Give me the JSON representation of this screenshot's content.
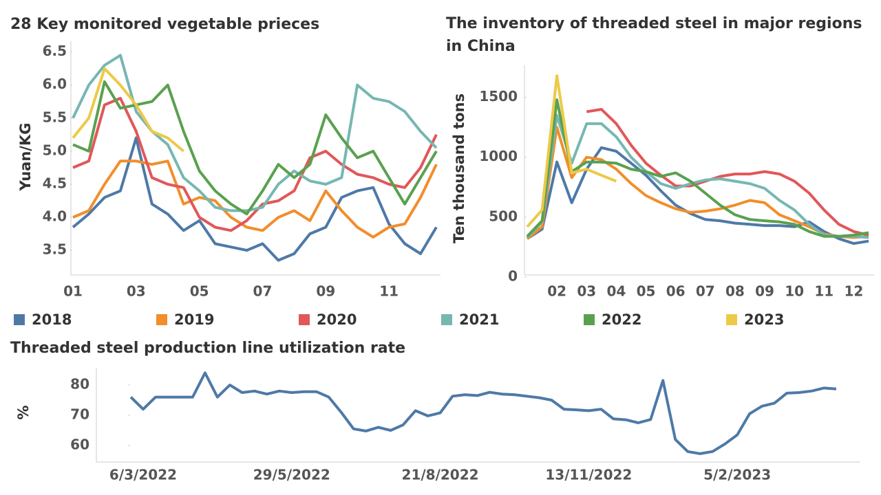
{
  "legend": [
    {
      "name": "2018",
      "color": "#4e79a7"
    },
    {
      "name": "2019",
      "color": "#f28e2b"
    },
    {
      "name": "2020",
      "color": "#e15759"
    },
    {
      "name": "2021",
      "color": "#76b7b2"
    },
    {
      "name": "2022",
      "color": "#59a14f"
    },
    {
      "name": "2023",
      "color": "#edc948"
    }
  ],
  "chart_data": [
    {
      "type": "line",
      "title": "28 Key monitored vegetable prieces",
      "y_label": "Yuan/KG",
      "categories": [
        "01",
        null,
        null,
        null,
        "03",
        null,
        null,
        null,
        "05",
        null,
        null,
        null,
        "07",
        null,
        null,
        null,
        "09",
        null,
        null,
        null,
        "11",
        null,
        null,
        null
      ],
      "ylim": [
        3.2,
        6.6
      ],
      "yticks": [
        3.5,
        {
          "value": 4,
          "label": "4.0"
        },
        4.5,
        {
          "value": 5,
          "label": "5.0"
        },
        5.5,
        {
          "value": 6,
          "label": "6.0"
        },
        6.5
      ],
      "series": [
        {
          "values": [
            3.85,
            4.05,
            4.3,
            4.4,
            5.2,
            4.2,
            4.05,
            3.8,
            3.95,
            3.6,
            3.55,
            3.5,
            3.6,
            3.35,
            3.45,
            3.75,
            3.85,
            4.3,
            4.4,
            4.45,
            3.9,
            3.6,
            3.45,
            3.85
          ]
        },
        {
          "values": [
            4.0,
            4.1,
            4.5,
            4.85,
            4.85,
            4.8,
            4.85,
            4.2,
            4.3,
            4.25,
            4.0,
            3.85,
            3.8,
            4.0,
            4.1,
            3.95,
            4.4,
            4.1,
            3.85,
            3.7,
            3.85,
            3.9,
            4.3,
            4.8
          ]
        },
        {
          "values": [
            4.75,
            4.85,
            5.7,
            5.8,
            5.3,
            4.6,
            4.5,
            4.45,
            4.0,
            3.85,
            3.8,
            3.95,
            4.2,
            4.25,
            4.4,
            4.9,
            5.0,
            4.8,
            4.65,
            4.6,
            4.5,
            4.45,
            4.75,
            5.25
          ]
        },
        {
          "values": [
            5.5,
            6.0,
            6.3,
            6.45,
            5.6,
            5.3,
            5.1,
            4.6,
            4.4,
            4.15,
            4.1,
            4.1,
            4.15,
            4.5,
            4.7,
            4.55,
            4.5,
            4.6,
            6.0,
            5.8,
            5.75,
            5.6,
            5.3,
            5.05
          ]
        },
        {
          "values": [
            5.1,
            5.0,
            6.05,
            5.65,
            5.7,
            5.75,
            6.0,
            5.3,
            4.7,
            4.4,
            4.2,
            4.05,
            4.4,
            4.8,
            4.6,
            4.8,
            5.55,
            5.2,
            4.9,
            5.0,
            4.6,
            4.2,
            4.6,
            5.0
          ]
        },
        {
          "values": [
            5.2,
            5.5,
            6.25,
            6.0,
            5.7,
            5.3,
            5.2,
            5.0,
            null,
            null,
            null,
            null,
            null,
            null,
            null,
            null,
            null,
            null,
            null,
            null,
            null,
            null,
            null,
            null
          ]
        }
      ]
    },
    {
      "type": "line",
      "title": "The inventory of threaded steel in major regions in China",
      "y_label": "Ten thousand tons",
      "categories": [
        null,
        null,
        "02",
        null,
        "03",
        null,
        "04",
        null,
        "05",
        null,
        "06",
        null,
        "07",
        null,
        "08",
        null,
        "09",
        null,
        "10",
        null,
        "11",
        null,
        "12",
        null
      ],
      "ylim": [
        0,
        1750
      ],
      "yticks": [
        0,
        500,
        1000,
        1500
      ],
      "series": [
        {
          "values": [
            320,
            400,
            960,
            620,
            900,
            1080,
            1050,
            950,
            850,
            720,
            600,
            530,
            480,
            470,
            450,
            440,
            430,
            430,
            420,
            460,
            380,
            320,
            280,
            300
          ]
        },
        {
          "values": [
            320,
            420,
            1250,
            830,
            1000,
            980,
            900,
            780,
            680,
            620,
            570,
            540,
            550,
            570,
            600,
            640,
            620,
            520,
            470,
            420,
            360,
            340,
            330,
            340
          ]
        },
        {
          "values": [
            null,
            null,
            null,
            null,
            1380,
            1400,
            1280,
            1100,
            950,
            850,
            760,
            760,
            800,
            840,
            860,
            860,
            880,
            860,
            800,
            700,
            560,
            440,
            380,
            350
          ]
        },
        {
          "values": [
            330,
            460,
            1350,
            950,
            1280,
            1280,
            1170,
            1000,
            880,
            780,
            740,
            780,
            810,
            820,
            800,
            780,
            740,
            640,
            560,
            440,
            350,
            340,
            340,
            330
          ]
        },
        {
          "values": [
            340,
            470,
            1480,
            880,
            960,
            960,
            950,
            900,
            880,
            840,
            870,
            800,
            700,
            600,
            520,
            480,
            470,
            460,
            440,
            380,
            340,
            340,
            350,
            370
          ]
        },
        {
          "values": [
            420,
            560,
            1680,
            870,
            900,
            850,
            800,
            null,
            null,
            null,
            null,
            null,
            null,
            null,
            null,
            null,
            null,
            null,
            null,
            null,
            null,
            null,
            null,
            null
          ]
        }
      ]
    },
    {
      "type": "line",
      "title": "Threaded steel production line utilization rate",
      "y_label": "%",
      "categories": [
        null,
        "6/3/2022",
        null,
        null,
        null,
        null,
        null,
        null,
        null,
        null,
        null,
        null,
        null,
        "29/5/2022",
        null,
        null,
        null,
        null,
        null,
        null,
        null,
        null,
        null,
        null,
        null,
        "21/8/2022",
        null,
        null,
        null,
        null,
        null,
        null,
        null,
        null,
        null,
        null,
        null,
        "13/11/2022",
        null,
        null,
        null,
        null,
        null,
        null,
        null,
        null,
        null,
        null,
        null,
        "5/2/2023",
        null,
        null,
        null,
        null,
        null,
        null,
        null,
        null
      ],
      "ylim": [
        55,
        85
      ],
      "yticks": [
        60,
        70,
        80
      ],
      "series": [
        {
          "values": [
            76,
            72,
            76,
            76,
            76,
            76,
            84,
            76,
            80,
            77.5,
            78,
            77,
            78,
            77.5,
            77.8,
            77.8,
            76,
            71,
            65.5,
            64.8,
            66,
            65,
            66.8,
            71.5,
            69.8,
            70.8,
            76.3,
            76.8,
            76.5,
            77.6,
            77,
            76.8,
            76.3,
            75.8,
            75,
            72,
            71.8,
            71.5,
            72,
            68.8,
            68.5,
            67.5,
            68.6,
            81.5,
            62,
            58,
            57.3,
            58,
            60.5,
            63.5,
            70.5,
            73,
            74,
            77.3,
            77.5,
            78,
            79,
            78.7
          ]
        }
      ]
    }
  ]
}
